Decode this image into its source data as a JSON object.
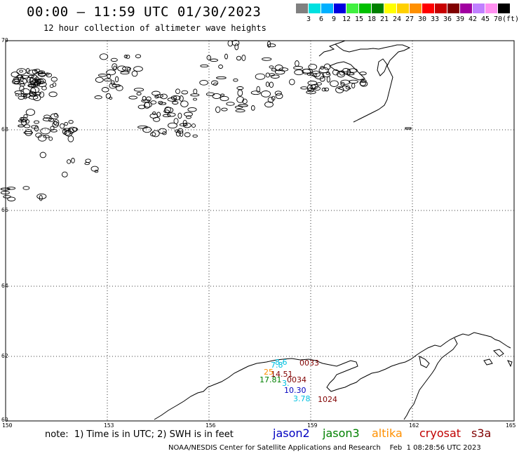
{
  "header": {
    "title": "00:00 – 11:59 UTC 01/30/2023",
    "subtitle": "12 hour collection of altimeter wave heights"
  },
  "color_scale": {
    "swatches": [
      "#808080",
      "#00e0e0",
      "#00b0ff",
      "#0000e0",
      "#40f040",
      "#00c000",
      "#008000",
      "#ffff00",
      "#ffd000",
      "#ff9000",
      "#ff0000",
      "#c80000",
      "#800000",
      "#a000a0",
      "#c080ff",
      "#ff90f0",
      "#000000"
    ],
    "ticks": [
      "3",
      "6",
      "9",
      "12",
      "15",
      "18",
      "21",
      "24",
      "27",
      "30",
      "33",
      "36",
      "39",
      "42",
      "45",
      "70"
    ],
    "unit": "(ft)"
  },
  "map": {
    "lat_labels": [
      "70",
      "68",
      "66",
      "64",
      "62",
      "60"
    ],
    "lon_labels": [
      "150",
      "153",
      "156",
      "159",
      "162",
      "165"
    ],
    "observations": [
      {
        "text": "0033",
        "color": "#800000"
      },
      {
        "text": "0034",
        "color": "#800000"
      },
      {
        "text": "1024",
        "color": "#800000"
      },
      {
        "text": "14.51",
        "color": "#800000"
      },
      {
        "text": "25",
        "color": "#ff9000"
      },
      {
        "text": "17.81",
        "color": "#008000"
      },
      {
        "text": "10.30",
        "color": "#0000c0"
      },
      {
        "text": "3.78",
        "color": "#00c0e0"
      },
      {
        "text": "7.8",
        "color": "#00c0e0"
      },
      {
        "text": "8.6",
        "color": "#00c0e0"
      },
      {
        "text": "3.",
        "color": "#00c0e0"
      }
    ]
  },
  "note": "note:  1) Time is in UTC; 2) SWH is in feet",
  "satellites": [
    {
      "name": "jason2",
      "color": "#0000c0"
    },
    {
      "name": "jason3",
      "color": "#008000"
    },
    {
      "name": "altika",
      "color": "#ff9000"
    },
    {
      "name": "cryosat",
      "color": "#c00000"
    },
    {
      "name": "s3a",
      "color": "#800000"
    }
  ],
  "footer": "NOAA/NESDIS Center for Satellite Applications and Research    Feb  1 08:28:56 UTC 2023"
}
